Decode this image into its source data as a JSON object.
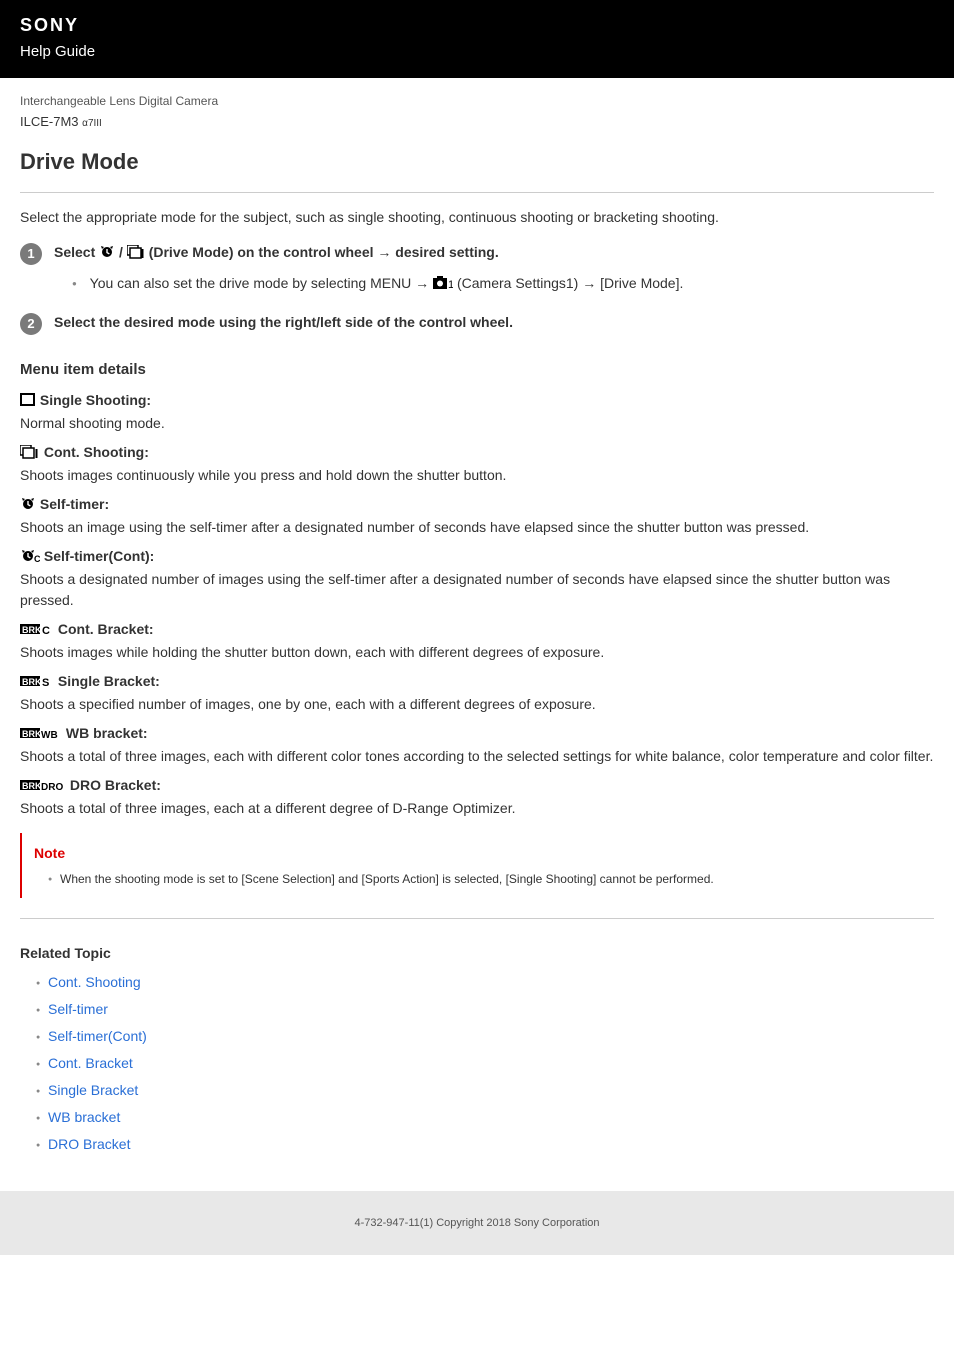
{
  "header": {
    "brand": "SONY",
    "subtitle": "Help Guide"
  },
  "product": {
    "category": "Interchangeable Lens Digital Camera",
    "model": "ILCE-7M3",
    "model_sub": "α7III"
  },
  "page": {
    "title": "Drive Mode",
    "intro": "Select the appropriate mode for the subject, such as single shooting, continuous shooting or bracketing shooting."
  },
  "steps": [
    {
      "num": "1",
      "title_pre": "Select ",
      "title_post": " (Drive Mode) on the control wheel → desired setting.",
      "bullets": [
        {
          "pre": "You can also set the drive mode by selecting MENU → ",
          "post": " (Camera Settings1) → [Drive Mode]."
        }
      ]
    },
    {
      "num": "2",
      "title_pre": "Select the desired mode using the right/left side of the control wheel.",
      "title_post": ""
    }
  ],
  "menu_details": {
    "heading": "Menu item details",
    "items": [
      {
        "icon": "single",
        "name": "Single Shooting:",
        "desc": "Normal shooting mode."
      },
      {
        "icon": "cont",
        "name": "Cont. Shooting:",
        "desc": "Shoots images continuously while you press and hold down the shutter button."
      },
      {
        "icon": "timer",
        "name": "Self-timer:",
        "desc": "Shoots an image using the self-timer after a designated number of seconds have elapsed since the shutter button was pressed."
      },
      {
        "icon": "timer-c",
        "name": "Self-timer(Cont):",
        "desc": "Shoots a designated number of images using the self-timer after a designated number of seconds have elapsed since the shutter button was pressed."
      },
      {
        "icon": "brk-c",
        "name": "Cont. Bracket:",
        "desc": "Shoots images while holding the shutter button down, each with different degrees of exposure."
      },
      {
        "icon": "brk-s",
        "name": "Single Bracket:",
        "desc": "Shoots a specified number of images, one by one, each with a different degrees of exposure."
      },
      {
        "icon": "brk-wb",
        "name": "WB bracket:",
        "desc": "Shoots a total of three images, each with different color tones according to the selected settings for white balance, color temperature and color filter."
      },
      {
        "icon": "brk-dro",
        "name": "DRO Bracket:",
        "desc": "Shoots a total of three images, each at a different degree of D-Range Optimizer."
      }
    ]
  },
  "note": {
    "title": "Note",
    "items": [
      "When the shooting mode is set to [Scene Selection] and [Sports Action] is selected, [Single Shooting] cannot be performed."
    ]
  },
  "related": {
    "heading": "Related Topic",
    "links": [
      "Cont. Shooting",
      "Self-timer",
      "Self-timer(Cont)",
      "Cont. Bracket",
      "Single Bracket",
      "WB bracket",
      "DRO Bracket"
    ]
  },
  "footer": {
    "copyright": "4-732-947-11(1) Copyright 2018 Sony Corporation"
  },
  "colors": {
    "header_bg": "#000000",
    "accent_red": "#d00000",
    "link": "#2a6fd6",
    "footer_bg": "#e8e8e8"
  }
}
